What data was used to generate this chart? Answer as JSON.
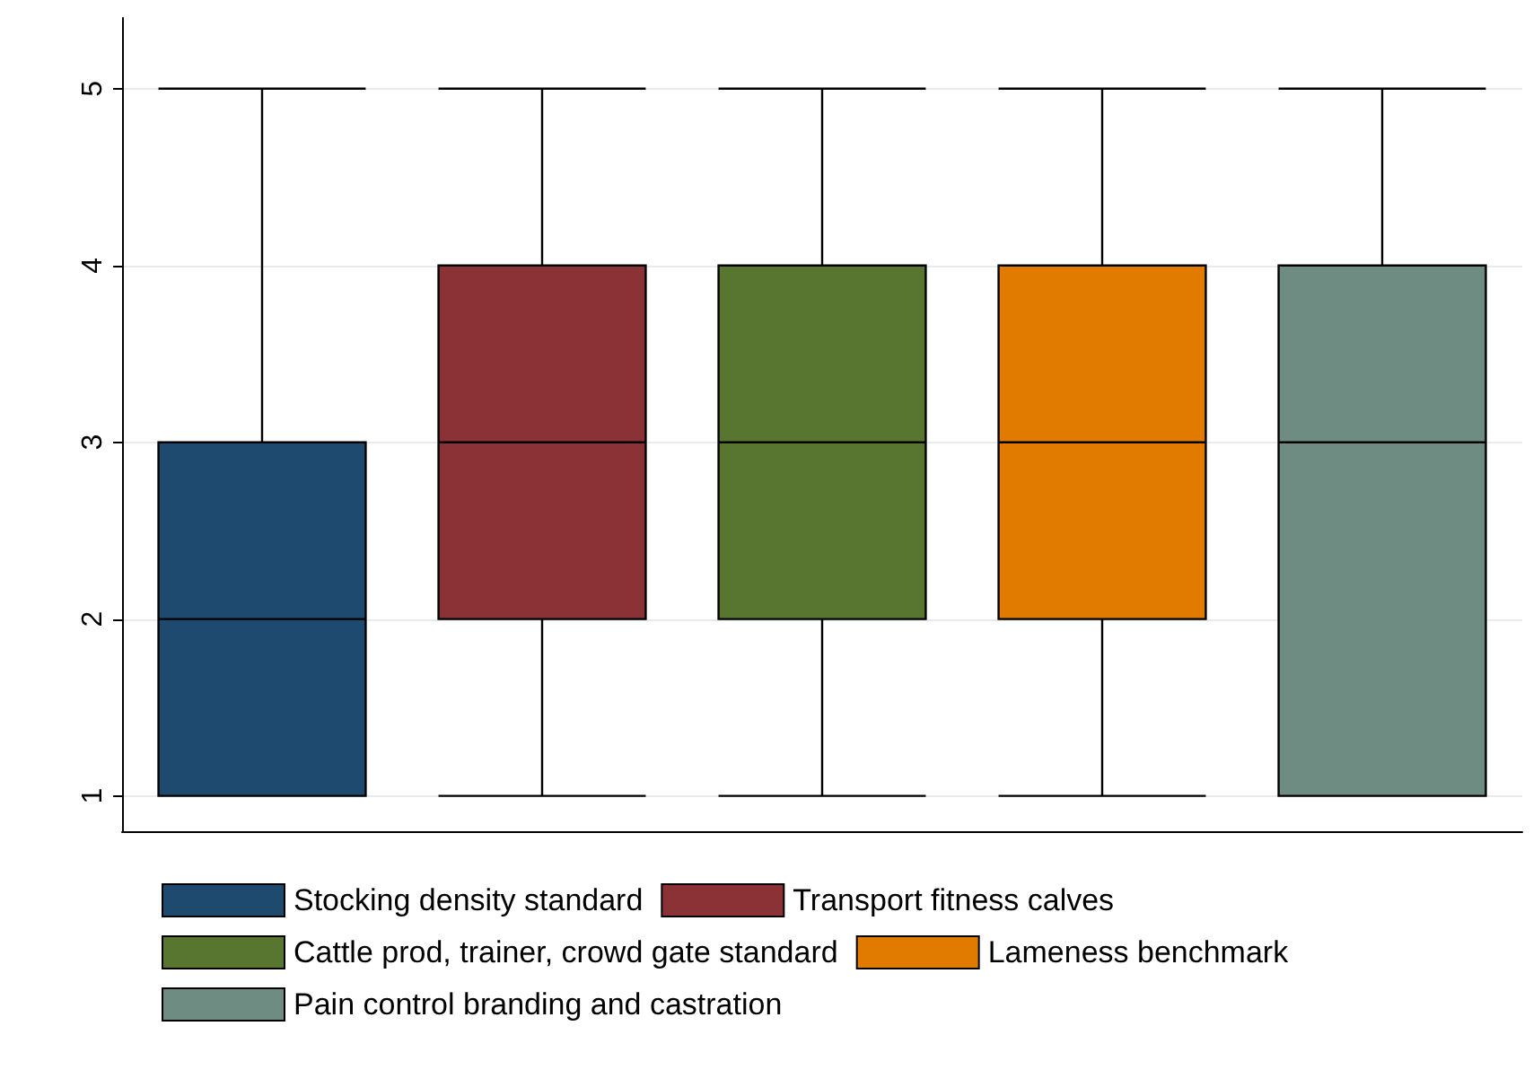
{
  "chart_data": {
    "type": "box",
    "categories": [
      null,
      null,
      null,
      null,
      null
    ],
    "series": [
      {
        "name": "Stocking density standard",
        "color": "#1f4a70",
        "boxes": [
          {
            "low": 1,
            "q1": 1,
            "median": 2,
            "q3": 3,
            "high": 5
          },
          null,
          null,
          null,
          null
        ]
      },
      {
        "name": "Transport fitness calves",
        "color": "#8b3236",
        "boxes": [
          null,
          {
            "low": 1,
            "q1": 2,
            "median": 3,
            "q3": 4,
            "high": 5
          },
          null,
          null,
          null
        ]
      },
      {
        "name": "Cattle prod, trainer, crowd gate standard",
        "color": "#58762f",
        "boxes": [
          null,
          null,
          {
            "low": 1,
            "q1": 2,
            "median": 3,
            "q3": 4,
            "high": 5
          },
          null,
          null
        ]
      },
      {
        "name": "Lameness benchmark",
        "color": "#e07b00",
        "boxes": [
          null,
          null,
          null,
          {
            "low": 1,
            "q1": 2,
            "median": 3,
            "q3": 4,
            "high": 5
          },
          null
        ]
      },
      {
        "name": "Pain control branding and castration",
        "color": "#6f8c82",
        "boxes": [
          null,
          null,
          null,
          null,
          {
            "low": 1,
            "q1": 1,
            "median": 3,
            "q3": 4,
            "high": 5
          }
        ]
      }
    ],
    "ylim": [
      0.8,
      5.4
    ],
    "yticks": [
      1,
      2,
      3,
      4,
      5
    ],
    "grid": "y",
    "legend": "bottom"
  }
}
